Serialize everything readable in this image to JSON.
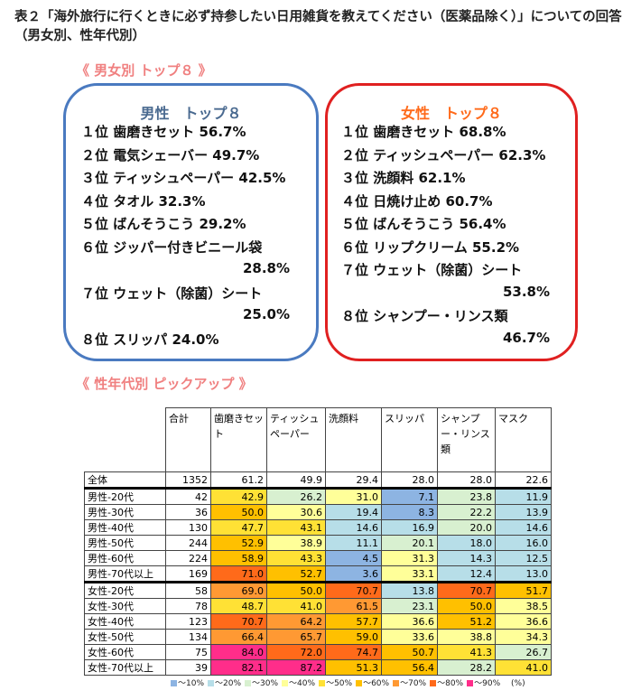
{
  "title": "表２「海外旅行に行くときに必ず持参したい日用雑貨を教えてください（医薬品除く）」についての回答（男女別、性年代別）",
  "section1": "《 男女別 トップ８ 》",
  "section2": "《 性年代別 ピックアップ 》",
  "male": {
    "heading": "男性　トップ８",
    "items": [
      {
        "rank": "１位",
        "text": "歯磨きセット 56.7%"
      },
      {
        "rank": "２位",
        "text": "電気シェーバー 49.7%"
      },
      {
        "rank": "３位",
        "text": "ティッシュペーパー 42.5%"
      },
      {
        "rank": "４位",
        "text": "タオル 32.3%"
      },
      {
        "rank": "５位",
        "text": "ばんそうこう 29.2%"
      },
      {
        "rank": "６位",
        "text": "ジッパー付きビニール袋",
        "cont": "28.8%"
      },
      {
        "rank": "７位",
        "text": "ウェット（除菌）シート",
        "cont": "25.0%"
      },
      {
        "rank": "８位",
        "text": "スリッパ 24.0%"
      }
    ]
  },
  "female": {
    "heading": "女性　トップ８",
    "items": [
      {
        "rank": "１位",
        "text": "歯磨きセット 68.8%"
      },
      {
        "rank": "２位",
        "text": "ティッシュペーパー 62.3%"
      },
      {
        "rank": "３位",
        "text": "洗顔料 62.1%"
      },
      {
        "rank": "４位",
        "text": "日焼け止め 60.7%"
      },
      {
        "rank": "５位",
        "text": "ばんそうこう 56.4%"
      },
      {
        "rank": "６位",
        "text": "リップクリーム 55.2%"
      },
      {
        "rank": "７位",
        "text": "ウェット（除菌）シート",
        "cont": "53.8%"
      },
      {
        "rank": "８位",
        "text": "シャンプー・リンス類",
        "cont": "46.7%"
      }
    ]
  },
  "table": {
    "headers": [
      "",
      "合計",
      "歯磨きセット",
      "ティッシュペーパー",
      "洗顔料",
      "スリッパ",
      "シャンプー・リンス類",
      "マスク"
    ],
    "rows": [
      {
        "label": "全体",
        "total": "1352",
        "values": [
          "61.2",
          "49.9",
          "29.4",
          "28.0",
          "28.0",
          "22.6"
        ]
      },
      {
        "label": "男性-20代",
        "total": "42",
        "values": [
          "42.9",
          "26.2",
          "31.0",
          "7.1",
          "23.8",
          "11.9"
        ]
      },
      {
        "label": "男性-30代",
        "total": "36",
        "values": [
          "50.0",
          "30.6",
          "19.4",
          "8.3",
          "22.2",
          "13.9"
        ]
      },
      {
        "label": "男性-40代",
        "total": "130",
        "values": [
          "47.7",
          "43.1",
          "14.6",
          "16.9",
          "20.0",
          "14.6"
        ]
      },
      {
        "label": "男性-50代",
        "total": "244",
        "values": [
          "52.9",
          "38.9",
          "11.1",
          "20.1",
          "18.0",
          "16.0"
        ]
      },
      {
        "label": "男性-60代",
        "total": "224",
        "values": [
          "58.9",
          "43.3",
          "4.5",
          "31.3",
          "14.3",
          "12.5"
        ]
      },
      {
        "label": "男性-70代以上",
        "total": "169",
        "values": [
          "71.0",
          "52.7",
          "3.6",
          "33.1",
          "12.4",
          "13.0"
        ]
      },
      {
        "label": "女性-20代",
        "total": "58",
        "values": [
          "69.0",
          "50.0",
          "70.7",
          "13.8",
          "70.7",
          "51.7"
        ]
      },
      {
        "label": "女性-30代",
        "total": "78",
        "values": [
          "48.7",
          "41.0",
          "61.5",
          "23.1",
          "50.0",
          "38.5"
        ]
      },
      {
        "label": "女性-40代",
        "total": "123",
        "values": [
          "70.7",
          "64.2",
          "57.7",
          "36.6",
          "51.2",
          "36.6"
        ]
      },
      {
        "label": "女性-50代",
        "total": "134",
        "values": [
          "66.4",
          "65.7",
          "59.0",
          "33.6",
          "38.8",
          "34.3"
        ]
      },
      {
        "label": "女性-60代",
        "total": "75",
        "values": [
          "84.0",
          "72.0",
          "74.7",
          "50.7",
          "41.3",
          "26.7"
        ]
      },
      {
        "label": "女性-70代以上",
        "total": "39",
        "values": [
          "82.1",
          "87.2",
          "51.3",
          "56.4",
          "28.2",
          "41.0"
        ]
      }
    ]
  },
  "legend": {
    "items": [
      {
        "label": "～10%",
        "color": "#8db4e2"
      },
      {
        "label": "～20%",
        "color": "#b7dee8"
      },
      {
        "label": "～30%",
        "color": "#d8f0d0"
      },
      {
        "label": "～40%",
        "color": "#ffff99"
      },
      {
        "label": "～50%",
        "color": "#ffe135"
      },
      {
        "label": "～60%",
        "color": "#ffc000"
      },
      {
        "label": "～70%",
        "color": "#ff9933"
      },
      {
        "label": "～80%",
        "color": "#ff6a1a"
      },
      {
        "label": "～90%",
        "color": "#ff2d8a"
      }
    ],
    "unit": "(%)"
  },
  "colors": {
    "male_border": "#4a7ac0",
    "female_border": "#e02020",
    "male_heading": "#4a6a90",
    "female_heading": "#ff6a1a"
  }
}
